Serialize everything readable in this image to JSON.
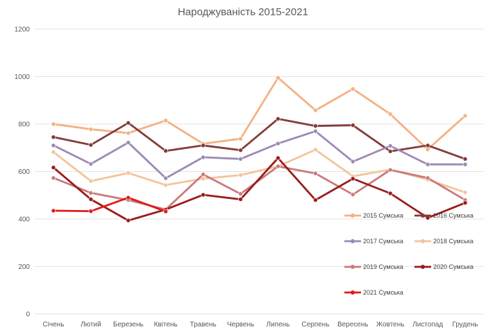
{
  "chart_data": {
    "type": "line",
    "title": "Народжуваність 2015-2021",
    "categories": [
      "Січень",
      "Лютий",
      "Березень",
      "Квітень",
      "Травень",
      "Червень",
      "Липень",
      "Серпень",
      "Вересень",
      "Жовтень",
      "Листопад",
      "Грудень"
    ],
    "ylim": [
      0,
      1200
    ],
    "yticks": [
      "0",
      "200",
      "400",
      "600",
      "800",
      "1000",
      "1200"
    ],
    "grid": true,
    "legend_position": "inside-right",
    "series": [
      {
        "name": "2015 Сумська",
        "color": "#f4b183",
        "values": [
          800,
          778,
          762,
          815,
          717,
          738,
          995,
          858,
          948,
          842,
          693,
          835
        ]
      },
      {
        "name": "2016 Сумська",
        "color": "#843c39",
        "values": [
          745,
          712,
          805,
          687,
          710,
          690,
          822,
          792,
          795,
          685,
          710,
          653
        ]
      },
      {
        "name": "2017 Сумська",
        "color": "#9d89b5",
        "values": [
          710,
          632,
          722,
          572,
          660,
          653,
          718,
          770,
          642,
          708,
          630,
          630
        ]
      },
      {
        "name": "2018 Сумська",
        "color": "#f4c49a",
        "values": [
          682,
          560,
          594,
          543,
          570,
          585,
          622,
          692,
          580,
          608,
          566,
          512
        ]
      },
      {
        "name": "2019 Сумська",
        "color": "#c97b7b",
        "values": [
          573,
          510,
          480,
          440,
          588,
          506,
          622,
          592,
          503,
          607,
          573,
          480
        ]
      },
      {
        "name": "2020 Сумська",
        "color": "#9b1b1b",
        "values": [
          617,
          483,
          394,
          440,
          502,
          483,
          657,
          480,
          570,
          508,
          405,
          468
        ]
      },
      {
        "name": "2021 Сумська",
        "color": "#e01b1b",
        "values": [
          435,
          433,
          490,
          432,
          null,
          null,
          null,
          null,
          null,
          null,
          null,
          null
        ]
      }
    ]
  }
}
